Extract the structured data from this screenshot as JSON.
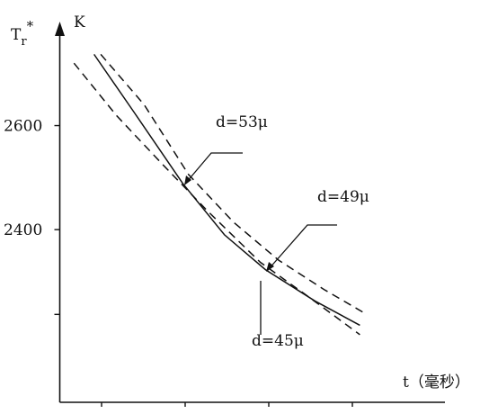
{
  "chart_data": {
    "type": "line",
    "y_label": {
      "base": "T",
      "sub": "r",
      "sup": "*"
    },
    "y_unit": "K",
    "x_label": "t（毫秒）",
    "xlim": [
      0.5,
      5.1
    ],
    "ylim": [
      2068,
      2793
    ],
    "xticks": [
      {
        "value": 1,
        "label": null
      },
      {
        "value": 2,
        "label": null
      },
      {
        "value": 3,
        "label": null
      },
      {
        "value": 4,
        "label": null
      }
    ],
    "yticks": [
      2600,
      2400,
      {
        "value": 2237,
        "label": null
      }
    ],
    "series": [
      {
        "name": "d=53μ",
        "color": "#111111",
        "dash": true,
        "x": [
          0.99,
          1.51,
          2.04,
          2.58,
          3.12,
          3.66,
          4.14
        ],
        "values": [
          2737,
          2640,
          2506,
          2414,
          2341,
          2285,
          2240
        ]
      },
      {
        "name": "d=49μ",
        "color": "#111111",
        "dash": false,
        "x": [
          0.91,
          1.4,
          1.97,
          2.47,
          2.96,
          3.55,
          4.09
        ],
        "values": [
          2737,
          2623,
          2489,
          2390,
          2323,
          2263,
          2216
        ]
      },
      {
        "name": "d=45μ",
        "color": "#111111",
        "dash": true,
        "x": [
          0.67,
          1.18,
          1.72,
          2.26,
          2.9,
          3.44,
          4.09
        ],
        "values": [
          2720,
          2619,
          2527,
          2437,
          2337,
          2275,
          2198
        ]
      }
    ]
  }
}
